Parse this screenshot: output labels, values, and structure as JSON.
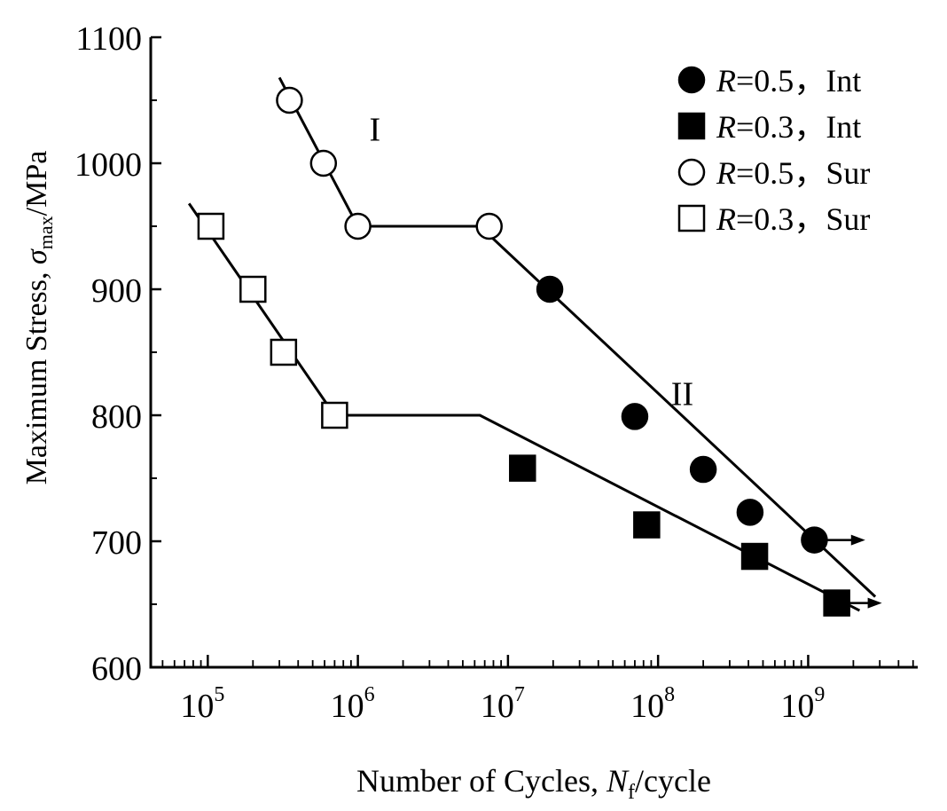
{
  "chart_data": {
    "type": "scatter",
    "xscale": "log",
    "xlim_log10": [
      4.62,
      9.73
    ],
    "ylim": [
      600,
      1100
    ],
    "xlabel_prefix": "Number of Cycles, ",
    "xlabel_var": "N",
    "xlabel_sub": "f",
    "xlabel_suffix": "/cycle",
    "ylabel_prefix": "Maximum Stress, ",
    "ylabel_var": "σ",
    "ylabel_sub": "max",
    "ylabel_suffix": "/MPa",
    "yticks": [
      600,
      700,
      800,
      900,
      1000,
      1100
    ],
    "xticks": [
      {
        "exp": 5,
        "base": "10",
        "sup": "5"
      },
      {
        "exp": 6,
        "base": "10",
        "sup": "6"
      },
      {
        "exp": 7,
        "base": "10",
        "sup": "7"
      },
      {
        "exp": 8,
        "base": "10",
        "sup": "8"
      },
      {
        "exp": 9,
        "base": "10",
        "sup": "9"
      }
    ],
    "series": [
      {
        "name": "R=0.5, Int",
        "var": "R",
        "eq": "=0.5",
        "mode": "，Int",
        "marker": "circle",
        "filled": true,
        "points": [
          [
            19000000.0,
            900
          ],
          [
            70000000.0,
            799
          ],
          [
            200000000.0,
            757
          ],
          [
            410000000.0,
            723
          ],
          [
            1100000000.0,
            701
          ]
        ]
      },
      {
        "name": "R=0.3, Int",
        "var": "R",
        "eq": "=0.3",
        "mode": "，Int",
        "marker": "square",
        "filled": true,
        "points": [
          [
            12500000.0,
            758
          ],
          [
            84000000.0,
            713
          ],
          [
            440000000.0,
            688
          ],
          [
            1550000000.0,
            651
          ]
        ]
      },
      {
        "name": "R=0.5, Sur",
        "var": "R",
        "eq": "=0.5",
        "mode": "，Sur",
        "marker": "circle",
        "filled": false,
        "points": [
          [
            350000.0,
            1050
          ],
          [
            590000.0,
            1000
          ],
          [
            1000000.0,
            950
          ],
          [
            7500000.0,
            950
          ]
        ]
      },
      {
        "name": "R=0.3, Sur",
        "var": "R",
        "eq": "=0.3",
        "mode": "，Sur",
        "marker": "square",
        "filled": false,
        "points": [
          [
            105000.0,
            950
          ],
          [
            200000.0,
            900
          ],
          [
            320000.0,
            850
          ],
          [
            700000.0,
            800
          ]
        ]
      }
    ],
    "fit_lines": [
      {
        "name": "R=0.5 fit",
        "points": [
          [
            300000.0,
            1068
          ],
          [
            1000000.0,
            950
          ],
          [
            6500000.0,
            950
          ],
          [
            2800000000.0,
            656
          ]
        ]
      },
      {
        "name": "R=0.3 fit",
        "points": [
          [
            75000.0,
            968
          ],
          [
            700000.0,
            800
          ],
          [
            6500000.0,
            800
          ],
          [
            2200000000.0,
            645
          ]
        ]
      }
    ],
    "arrows": [
      {
        "name": "runout R=0.5",
        "from": [
          1100000000.0,
          701
        ],
        "to": [
          2400000000.0,
          701
        ]
      },
      {
        "name": "runout R=0.3",
        "from": [
          1550000000.0,
          651
        ],
        "to": [
          3100000000.0,
          651
        ]
      }
    ],
    "annotations": [
      {
        "name": "region-one",
        "text": "I",
        "x": 1300000.0,
        "y": 1018
      },
      {
        "name": "region-two",
        "text": "II",
        "x": 145000000.0,
        "y": 808
      }
    ],
    "legend_position": "top-right"
  }
}
